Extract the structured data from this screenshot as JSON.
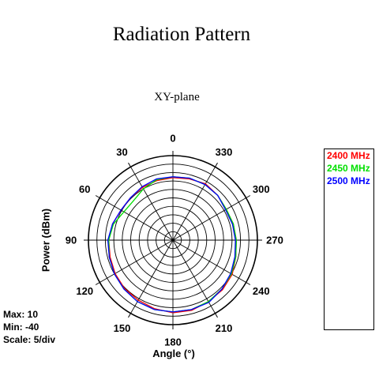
{
  "chart_data": {
    "type": "polar-line",
    "title": "Radiation Pattern",
    "subtitle": "XY-plane",
    "ylabel": "Power  (dBm)",
    "xlabel": "Angle  (°)",
    "stats": {
      "max": "Max: 10",
      "min": "Min: -40",
      "scale": "Scale: 5/div"
    },
    "r_range": [
      -40,
      10
    ],
    "r_step": 5,
    "angle_direction": "counterclockwise",
    "angle_zero": "top",
    "angle_ticks": [
      0,
      30,
      60,
      90,
      120,
      150,
      180,
      210,
      240,
      270,
      300,
      330
    ],
    "angle_tick_labels": [
      "0",
      "30",
      "60",
      "90",
      "120",
      "150",
      "180",
      "210",
      "240",
      "270",
      "300",
      "330"
    ],
    "grid": true,
    "legend_placement": "right",
    "series": [
      {
        "name": "2400 MHz",
        "color": "#ff0000",
        "angles": [
          0,
          15,
          30,
          45,
          60,
          75,
          90,
          105,
          120,
          135,
          150,
          165,
          180,
          195,
          210,
          225,
          240,
          255,
          270,
          285,
          300,
          315,
          330,
          345
        ],
        "values": [
          -3.0,
          -3.5,
          -4.0,
          -4.5,
          -4.5,
          -3.0,
          -2.0,
          -1.5,
          -0.5,
          0.5,
          1.0,
          2.0,
          3.0,
          3.0,
          2.0,
          1.5,
          0.5,
          -1.5,
          -2.5,
          -3.0,
          -3.5,
          -2.5,
          -1.5,
          -2.5
        ]
      },
      {
        "name": "2450 MHz",
        "color": "#00e000",
        "angles": [
          0,
          15,
          30,
          45,
          60,
          75,
          90,
          105,
          120,
          135,
          150,
          165,
          180,
          195,
          210,
          225,
          240,
          255,
          270,
          285,
          300,
          315,
          330,
          345
        ],
        "values": [
          -2.5,
          -3.0,
          -5.0,
          -7.0,
          -6.5,
          -3.5,
          -2.0,
          -1.0,
          0.0,
          1.0,
          2.0,
          2.5,
          2.5,
          2.5,
          2.0,
          1.0,
          0.0,
          -1.5,
          -2.5,
          -3.0,
          -3.5,
          -2.5,
          -2.0,
          -2.0
        ]
      },
      {
        "name": "2500 MHz",
        "color": "#0000ff",
        "angles": [
          0,
          15,
          30,
          45,
          60,
          75,
          90,
          105,
          120,
          135,
          150,
          165,
          180,
          195,
          210,
          225,
          240,
          255,
          270,
          285,
          300,
          315,
          330,
          345
        ],
        "values": [
          -2.5,
          -2.5,
          -3.5,
          -4.5,
          -4.5,
          -3.0,
          -1.5,
          -1.0,
          0.0,
          1.0,
          2.0,
          2.5,
          2.5,
          2.5,
          2.5,
          1.0,
          -0.5,
          -2.0,
          -3.0,
          -3.5,
          -4.0,
          -2.5,
          -2.0,
          -2.0
        ]
      }
    ]
  },
  "colors": {
    "grid": "#000000"
  }
}
